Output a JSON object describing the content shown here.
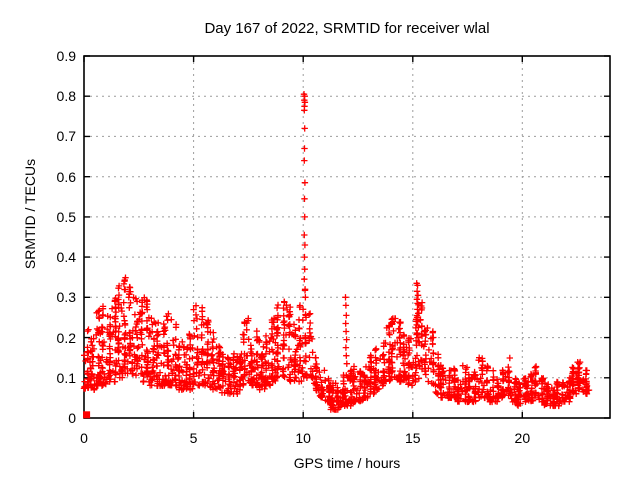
{
  "chart_data": {
    "type": "scatter",
    "title": "Day 167 of 2022, SRMTID for receiver wlal",
    "xlabel": "GPS time / hours",
    "ylabel": "SRMTID / TECUs",
    "xlim": [
      0,
      24
    ],
    "ylim": [
      0,
      0.9
    ],
    "xticks": [
      0,
      5,
      10,
      15,
      20
    ],
    "yticks": [
      0,
      0.1,
      0.2,
      0.3,
      0.4,
      0.5,
      0.6,
      0.7,
      0.8,
      0.9
    ],
    "xtick_labels": [
      "0",
      "5",
      "10",
      "15",
      "20"
    ],
    "ytick_labels": [
      "0",
      "0.1",
      "0.2",
      "0.3",
      "0.4",
      "0.5",
      "0.6",
      "0.7",
      "0.8",
      "0.9"
    ],
    "grid": true,
    "grid_color": "#9c9c9c",
    "legend": "none",
    "marker": {
      "shape": "plus",
      "color": "#ff0000",
      "size": 7
    },
    "seed": 167,
    "origin_point": {
      "x": 0.12,
      "y": 0.008,
      "shape": "filled-square"
    },
    "density_bins": [
      [
        0.0,
        0.25,
        0.07,
        0.22,
        28
      ],
      [
        0.25,
        0.5,
        0.07,
        0.2,
        28
      ],
      [
        0.5,
        0.75,
        0.08,
        0.27,
        28
      ],
      [
        0.75,
        1.0,
        0.08,
        0.28,
        28
      ],
      [
        1.0,
        1.25,
        0.09,
        0.26,
        28
      ],
      [
        1.25,
        1.5,
        0.09,
        0.3,
        28
      ],
      [
        1.5,
        1.75,
        0.1,
        0.33,
        30
      ],
      [
        1.75,
        2.0,
        0.11,
        0.35,
        30
      ],
      [
        2.0,
        2.25,
        0.11,
        0.33,
        30
      ],
      [
        2.25,
        2.5,
        0.1,
        0.31,
        28
      ],
      [
        2.5,
        2.75,
        0.09,
        0.3,
        28
      ],
      [
        2.75,
        3.0,
        0.09,
        0.31,
        28
      ],
      [
        3.0,
        3.25,
        0.08,
        0.26,
        26
      ],
      [
        3.25,
        3.5,
        0.08,
        0.24,
        26
      ],
      [
        3.5,
        3.75,
        0.08,
        0.24,
        26
      ],
      [
        3.75,
        4.0,
        0.08,
        0.26,
        26
      ],
      [
        4.0,
        4.25,
        0.08,
        0.24,
        26
      ],
      [
        4.25,
        4.5,
        0.07,
        0.2,
        24
      ],
      [
        4.5,
        4.75,
        0.06,
        0.18,
        24
      ],
      [
        4.75,
        5.0,
        0.07,
        0.22,
        24
      ],
      [
        5.0,
        5.25,
        0.08,
        0.28,
        26
      ],
      [
        5.25,
        5.5,
        0.08,
        0.29,
        26
      ],
      [
        5.5,
        5.75,
        0.08,
        0.25,
        26
      ],
      [
        5.75,
        6.0,
        0.07,
        0.22,
        24
      ],
      [
        6.0,
        6.25,
        0.07,
        0.18,
        24
      ],
      [
        6.25,
        6.5,
        0.06,
        0.16,
        24
      ],
      [
        6.5,
        6.75,
        0.06,
        0.15,
        22
      ],
      [
        6.75,
        7.0,
        0.06,
        0.16,
        22
      ],
      [
        7.0,
        7.25,
        0.07,
        0.18,
        22
      ],
      [
        7.25,
        7.5,
        0.07,
        0.25,
        24
      ],
      [
        7.5,
        7.75,
        0.08,
        0.2,
        24
      ],
      [
        7.75,
        8.0,
        0.08,
        0.22,
        24
      ],
      [
        8.0,
        8.25,
        0.07,
        0.18,
        24
      ],
      [
        8.25,
        8.5,
        0.08,
        0.22,
        24
      ],
      [
        8.5,
        8.75,
        0.09,
        0.26,
        26
      ],
      [
        8.75,
        9.0,
        0.09,
        0.3,
        26
      ],
      [
        9.0,
        9.25,
        0.1,
        0.31,
        26
      ],
      [
        9.25,
        9.5,
        0.09,
        0.28,
        26
      ],
      [
        9.5,
        9.75,
        0.09,
        0.24,
        24
      ],
      [
        9.75,
        10.0,
        0.09,
        0.28,
        24
      ],
      [
        10.0,
        10.2,
        0.1,
        0.32,
        18
      ],
      [
        10.2,
        10.45,
        0.1,
        0.26,
        18
      ],
      [
        10.45,
        10.7,
        0.06,
        0.15,
        20
      ],
      [
        10.7,
        11.0,
        0.05,
        0.12,
        22
      ],
      [
        11.0,
        11.25,
        0.04,
        0.1,
        22
      ],
      [
        11.25,
        11.5,
        0.02,
        0.09,
        22
      ],
      [
        11.5,
        11.75,
        0.02,
        0.08,
        22
      ],
      [
        11.75,
        12.0,
        0.03,
        0.11,
        22
      ],
      [
        12.0,
        12.25,
        0.03,
        0.12,
        22
      ],
      [
        12.25,
        12.5,
        0.04,
        0.13,
        22
      ],
      [
        12.5,
        12.75,
        0.04,
        0.12,
        22
      ],
      [
        12.75,
        13.0,
        0.05,
        0.13,
        22
      ],
      [
        13.0,
        13.25,
        0.06,
        0.16,
        24
      ],
      [
        13.25,
        13.5,
        0.07,
        0.18,
        24
      ],
      [
        13.5,
        13.75,
        0.08,
        0.2,
        24
      ],
      [
        13.75,
        14.0,
        0.09,
        0.23,
        24
      ],
      [
        14.0,
        14.25,
        0.1,
        0.25,
        24
      ],
      [
        14.25,
        14.5,
        0.09,
        0.24,
        24
      ],
      [
        14.5,
        14.75,
        0.09,
        0.21,
        22
      ],
      [
        14.75,
        15.0,
        0.08,
        0.2,
        22
      ],
      [
        15.0,
        15.25,
        0.09,
        0.27,
        22
      ],
      [
        15.25,
        15.5,
        0.09,
        0.3,
        22
      ],
      [
        15.5,
        15.75,
        0.09,
        0.26,
        20
      ],
      [
        15.75,
        16.0,
        0.08,
        0.22,
        20
      ],
      [
        16.0,
        16.25,
        0.06,
        0.16,
        20
      ],
      [
        16.25,
        16.5,
        0.05,
        0.14,
        20
      ],
      [
        16.5,
        16.75,
        0.05,
        0.12,
        20
      ],
      [
        16.75,
        17.0,
        0.05,
        0.14,
        20
      ],
      [
        17.0,
        17.25,
        0.04,
        0.11,
        20
      ],
      [
        17.25,
        17.5,
        0.04,
        0.13,
        20
      ],
      [
        17.5,
        17.75,
        0.04,
        0.11,
        20
      ],
      [
        17.75,
        18.0,
        0.04,
        0.12,
        20
      ],
      [
        18.0,
        18.25,
        0.05,
        0.16,
        20
      ],
      [
        18.25,
        18.5,
        0.05,
        0.13,
        20
      ],
      [
        18.5,
        18.75,
        0.04,
        0.12,
        20
      ],
      [
        18.75,
        19.0,
        0.04,
        0.11,
        20
      ],
      [
        19.0,
        19.25,
        0.05,
        0.12,
        20
      ],
      [
        19.25,
        19.5,
        0.05,
        0.15,
        20
      ],
      [
        19.5,
        19.75,
        0.04,
        0.1,
        20
      ],
      [
        19.75,
        20.0,
        0.03,
        0.09,
        20
      ],
      [
        20.0,
        20.25,
        0.04,
        0.1,
        20
      ],
      [
        20.25,
        20.5,
        0.04,
        0.11,
        20
      ],
      [
        20.5,
        20.75,
        0.05,
        0.13,
        20
      ],
      [
        20.75,
        21.0,
        0.04,
        0.1,
        20
      ],
      [
        21.0,
        21.25,
        0.03,
        0.09,
        20
      ],
      [
        21.25,
        21.5,
        0.03,
        0.08,
        20
      ],
      [
        21.5,
        21.75,
        0.03,
        0.09,
        20
      ],
      [
        21.75,
        22.0,
        0.04,
        0.09,
        20
      ],
      [
        22.0,
        22.25,
        0.04,
        0.1,
        20
      ],
      [
        22.25,
        22.5,
        0.06,
        0.13,
        22
      ],
      [
        22.5,
        22.75,
        0.07,
        0.14,
        22
      ],
      [
        22.75,
        23.05,
        0.06,
        0.12,
        22
      ]
    ],
    "spike_points": [
      [
        10.04,
        0.805
      ],
      [
        10.07,
        0.8
      ],
      [
        10.05,
        0.79
      ],
      [
        10.08,
        0.785
      ],
      [
        10.06,
        0.775
      ],
      [
        10.05,
        0.765
      ],
      [
        10.07,
        0.72
      ],
      [
        10.06,
        0.67
      ],
      [
        10.05,
        0.64
      ],
      [
        10.08,
        0.585
      ],
      [
        10.06,
        0.545
      ],
      [
        10.07,
        0.5
      ],
      [
        10.05,
        0.455
      ],
      [
        10.08,
        0.43
      ],
      [
        10.06,
        0.4
      ],
      [
        10.07,
        0.37
      ],
      [
        10.05,
        0.345
      ],
      [
        10.09,
        0.32
      ],
      [
        10.1,
        0.3
      ],
      [
        15.18,
        0.335
      ],
      [
        15.22,
        0.33
      ],
      [
        15.2,
        0.315
      ],
      [
        15.24,
        0.305
      ],
      [
        15.19,
        0.295
      ],
      [
        15.22,
        0.285
      ],
      [
        15.21,
        0.27
      ],
      [
        15.25,
        0.26
      ],
      [
        15.2,
        0.25
      ],
      [
        15.23,
        0.24
      ],
      [
        15.26,
        0.225
      ],
      [
        15.21,
        0.21
      ],
      [
        15.24,
        0.2
      ],
      [
        15.28,
        0.19
      ],
      [
        11.93,
        0.3
      ],
      [
        11.95,
        0.28
      ],
      [
        11.97,
        0.255
      ],
      [
        11.94,
        0.235
      ],
      [
        11.96,
        0.215
      ],
      [
        11.98,
        0.195
      ],
      [
        11.95,
        0.175
      ],
      [
        11.97,
        0.155
      ],
      [
        11.99,
        0.135
      ]
    ]
  }
}
